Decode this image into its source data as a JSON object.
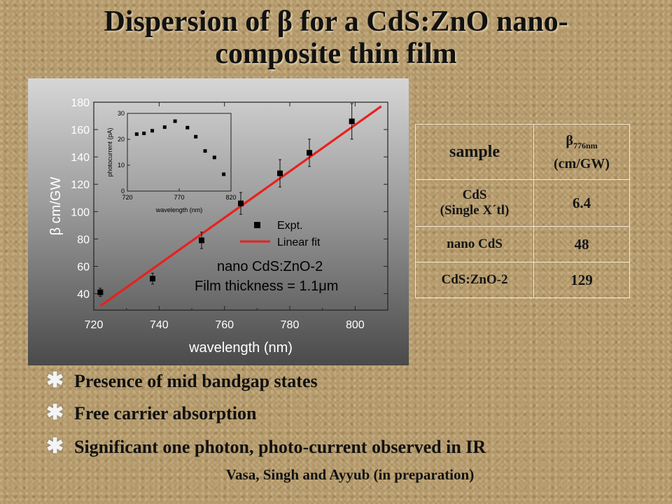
{
  "slide": {
    "title_line1": "Dispersion of β for a CdS:ZnO nano-",
    "title_line2": "composite thin film",
    "bullets": [
      "Presence of mid bandgap states",
      "Free carrier absorption",
      "Significant one photon, photo-current observed in IR"
    ],
    "bullet_icon": "asterisk-icon",
    "credit": "Vasa, Singh and Ayyub (in preparation)"
  },
  "table": {
    "header_sample": "sample",
    "header_beta_symbol": "β",
    "header_beta_sub": "776nm",
    "header_beta_unit": "(cm/GW)",
    "rows": [
      {
        "sample_line1": "CdS",
        "sample_line2": "(Single X´tl)",
        "value": "6.4"
      },
      {
        "sample_line1": "nano CdS",
        "sample_line2": "",
        "value": "48"
      },
      {
        "sample_line1": "CdS:ZnO-2",
        "sample_line2": "",
        "value": "129"
      }
    ]
  },
  "chart_data": [
    {
      "type": "scatter",
      "title": "",
      "xlabel": "wavelength (nm)",
      "ylabel": "β cm/GW",
      "xlim": [
        720,
        810
      ],
      "ylim": [
        28,
        180
      ],
      "xticks": [
        720,
        740,
        760,
        780,
        800
      ],
      "yticks": [
        40,
        60,
        80,
        100,
        120,
        140,
        160,
        180
      ],
      "grid": false,
      "legend_placement": "bottom-right",
      "annotations": [
        "nano CdS:ZnO-2",
        "Film thickness = 1.1μm"
      ],
      "series": [
        {
          "name": "Expt.",
          "marker": "square",
          "color": "#000000",
          "x": [
            722,
            738,
            753,
            765,
            777,
            786,
            799
          ],
          "y": [
            41,
            51,
            79,
            106,
            128,
            143,
            166
          ],
          "yerr": [
            3,
            4,
            6,
            8,
            10,
            10,
            13
          ]
        },
        {
          "name": "Linear fit",
          "type": "line",
          "color": "#e8211d",
          "x": [
            722,
            808
          ],
          "y": [
            31,
            177
          ]
        }
      ]
    },
    {
      "type": "scatter",
      "title": "",
      "xlabel": "wavelength (nm)",
      "ylabel": "photocurrent (pA)",
      "xlim": [
        720,
        820
      ],
      "ylim": [
        0,
        30
      ],
      "xticks": [
        720,
        770,
        820
      ],
      "yticks": [
        0,
        10,
        20,
        30
      ],
      "grid": false,
      "series": [
        {
          "marker": "square",
          "color": "#000000",
          "x": [
            729,
            736,
            744,
            756,
            766,
            778,
            786,
            795,
            804,
            813
          ],
          "y": [
            22,
            22.3,
            23.3,
            24.7,
            27,
            24.5,
            21,
            15.5,
            13,
            6.5
          ]
        }
      ]
    }
  ]
}
